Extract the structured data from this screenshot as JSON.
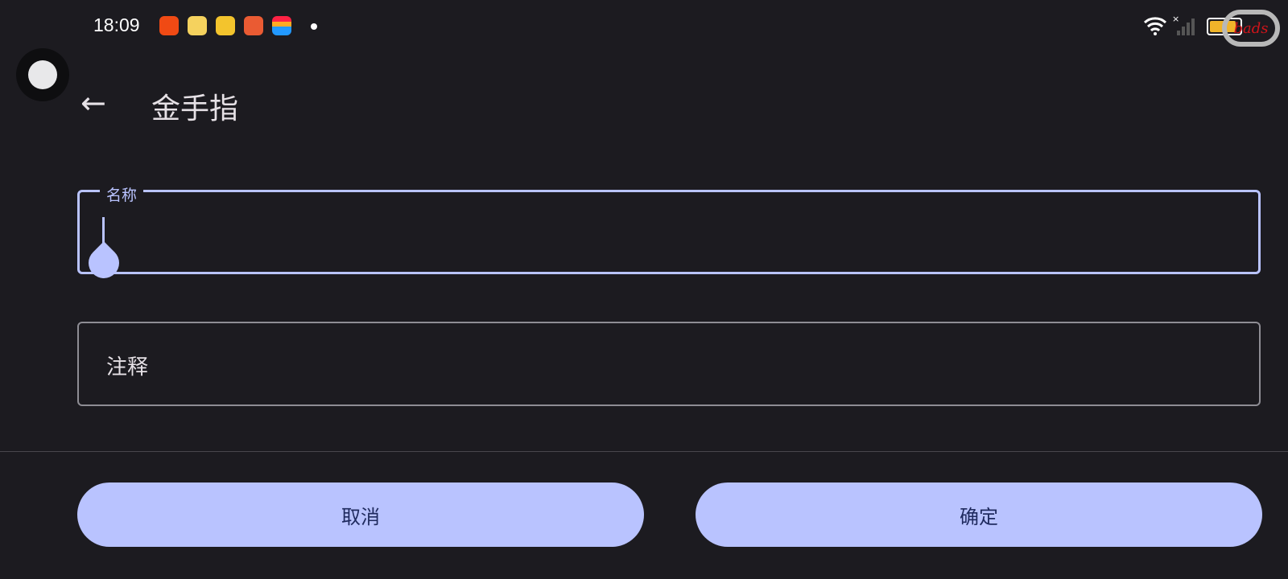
{
  "status_bar": {
    "time": "18:09",
    "app_icons": [
      "kuaishou-icon",
      "weibo-icon",
      "favorites-icon",
      "reader-icon",
      "wallet-icon"
    ],
    "wifi": "wifi-icon",
    "signal": "signal-no-sim-icon",
    "battery_level": 0.9,
    "watermark": "bads"
  },
  "header": {
    "title": "金手指",
    "back_icon": "arrow-left-icon"
  },
  "form": {
    "name_label": "名称",
    "name_value": "",
    "note_placeholder": "注释"
  },
  "actions": {
    "cancel": "取消",
    "confirm": "确定"
  },
  "colors": {
    "accent": "#b9c3ff",
    "background": "#1c1b20",
    "button_text": "#1f2a5e"
  }
}
